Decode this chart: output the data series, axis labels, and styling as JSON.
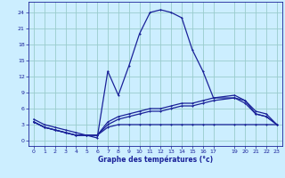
{
  "xlabel": "Graphe des températures (°c)",
  "background_color": "#cceeff",
  "grid_color": "#99cccc",
  "line_color": "#1a2299",
  "xlim": [
    -0.5,
    23.5
  ],
  "ylim": [
    -1.0,
    26.0
  ],
  "yticks": [
    0,
    3,
    6,
    9,
    12,
    15,
    18,
    21,
    24
  ],
  "xticks": [
    0,
    1,
    2,
    3,
    4,
    5,
    6,
    7,
    8,
    9,
    10,
    11,
    12,
    13,
    14,
    15,
    16,
    17,
    19,
    20,
    21,
    22,
    23
  ],
  "series1_x": [
    0,
    1,
    2,
    3,
    4,
    5,
    6,
    7,
    8,
    9,
    10,
    11,
    12,
    13,
    14,
    15,
    16,
    17,
    19,
    20,
    21,
    22,
    23
  ],
  "series1_y": [
    4,
    3,
    2.5,
    2,
    1.5,
    1,
    0.5,
    13,
    8.5,
    14,
    20,
    24,
    24.5,
    24,
    23,
    17,
    13,
    8,
    8,
    7.5,
    5,
    4.5,
    3
  ],
  "series2_x": [
    0,
    1,
    2,
    3,
    4,
    5,
    6,
    7,
    8,
    9,
    10,
    11,
    12,
    13,
    14,
    15,
    16,
    17,
    19,
    20,
    21,
    22,
    23
  ],
  "series2_y": [
    3.5,
    2.5,
    2,
    1.5,
    1,
    1,
    1,
    3.5,
    4.5,
    5,
    5.5,
    6,
    6,
    6.5,
    7,
    7,
    7.5,
    8,
    8.5,
    7.5,
    5.5,
    5,
    3
  ],
  "series3_x": [
    0,
    1,
    2,
    3,
    4,
    5,
    6,
    7,
    8,
    9,
    10,
    11,
    12,
    13,
    14,
    15,
    16,
    17,
    19,
    20,
    21,
    22,
    23
  ],
  "series3_y": [
    3.5,
    2.5,
    2,
    1.5,
    1,
    1,
    1,
    3,
    4,
    4.5,
    5,
    5.5,
    5.5,
    6,
    6.5,
    6.5,
    7,
    7.5,
    8,
    7,
    5,
    4.5,
    3
  ],
  "series4_x": [
    0,
    1,
    2,
    3,
    4,
    5,
    6,
    7,
    8,
    9,
    10,
    11,
    12,
    13,
    14,
    15,
    16,
    17,
    19,
    20,
    21,
    22,
    23
  ],
  "series4_y": [
    3.5,
    2.5,
    2,
    1.5,
    1,
    1,
    1,
    2.5,
    3,
    3,
    3,
    3,
    3,
    3,
    3,
    3,
    3,
    3,
    3,
    3,
    3,
    3,
    3
  ]
}
